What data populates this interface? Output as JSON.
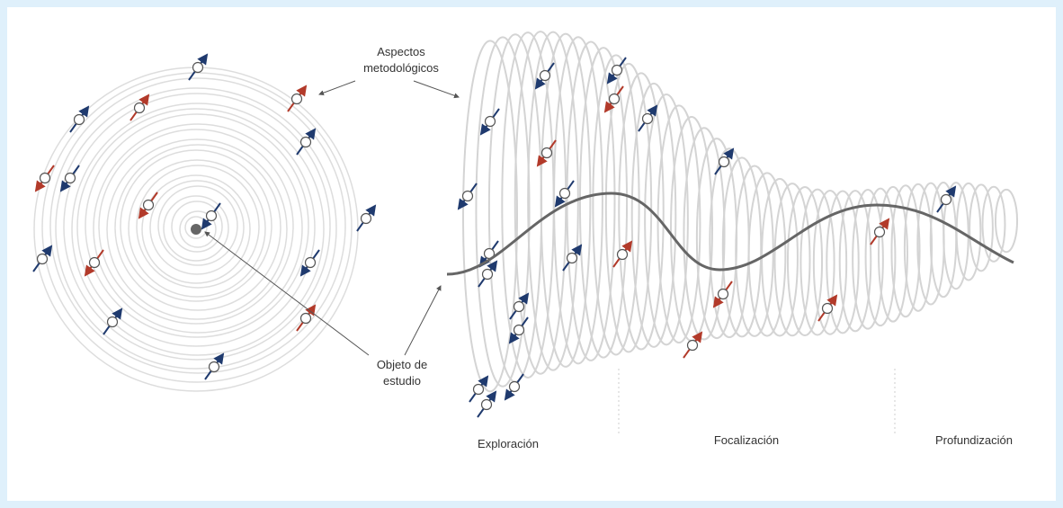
{
  "annotations": [
    {
      "lines": [
        "Aspectos",
        "metodológicos"
      ]
    },
    {
      "lines": [
        "Objeto de",
        "estudio"
      ]
    }
  ],
  "phases": [
    "Exploración",
    "Focalización",
    "Profundización"
  ]
}
